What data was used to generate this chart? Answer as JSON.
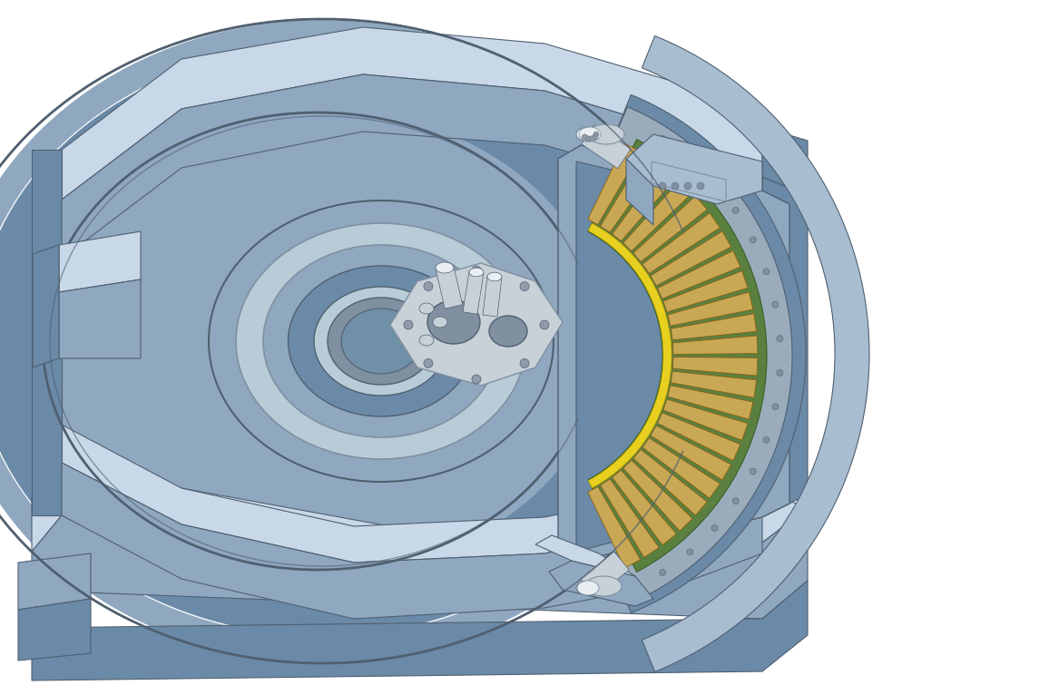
{
  "background_color": "#ffffff",
  "figsize": [
    11.56,
    7.66
  ],
  "dpi": 100,
  "c_light": "#a8bdd0",
  "c_mid": "#8fa8c0",
  "c_dark": "#6a8aa8",
  "c_darker": "#506070",
  "c_highlight": "#c8d8e8",
  "c_shadow": "#708090",
  "c_inner_light": "#b8ccd8",
  "c_inner_dark": "#8090a0",
  "c_silver": "#c8d0d8",
  "c_silver_dark": "#909aa8",
  "c_green": "#5a8040",
  "c_tan": "#c8a855",
  "c_yellow": "#e8d020",
  "c_white": "#e8eef2",
  "c_steel": "#9aacbc"
}
